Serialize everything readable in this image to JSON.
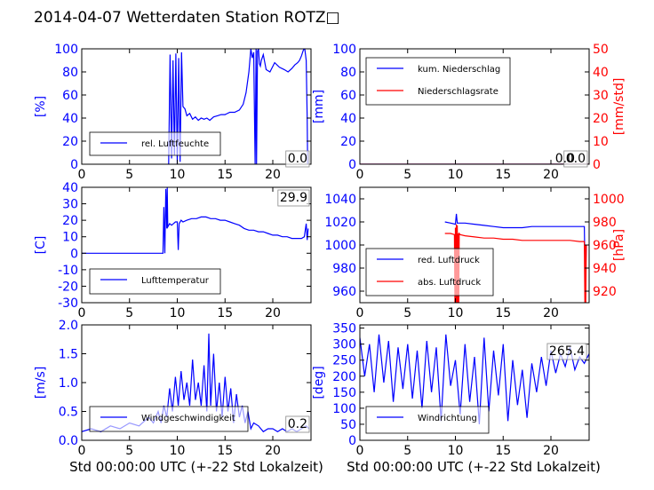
{
  "title": "2014-04-07 Wetterdaten Station ROTZ□",
  "chart_data": [
    {
      "type": "line",
      "panel": "humidity",
      "ylabel": "[%]",
      "ylim": [
        0,
        100
      ],
      "yticks": [
        0,
        20,
        40,
        60,
        80,
        100
      ],
      "xlim": [
        0,
        24
      ],
      "xticks": [
        0,
        5,
        10,
        15,
        20
      ],
      "legend": "bottom-left",
      "grid": false,
      "value_box": "0.0",
      "series": [
        {
          "name": "rel. Luftfeuchte",
          "color": "#0000ff",
          "x": [
            9.1,
            9.25,
            9.4,
            9.55,
            9.7,
            9.85,
            10.0,
            10.15,
            10.3,
            10.45,
            10.6,
            10.8,
            11.0,
            11.3,
            11.6,
            11.9,
            12.2,
            12.5,
            12.8,
            13.1,
            13.4,
            13.8,
            14.2,
            14.6,
            15.0,
            15.5,
            16.0,
            16.5,
            16.9,
            17.2,
            17.5,
            17.7,
            17.85,
            18.0,
            18.15,
            18.25,
            18.3,
            18.4,
            18.5,
            18.6,
            18.7,
            18.8,
            19.0,
            19.3,
            19.7,
            20.2,
            20.7,
            21.2,
            21.6,
            22.0,
            22.3,
            22.6,
            22.8,
            23.0,
            23.2,
            23.35,
            23.5,
            23.6,
            23.65
          ],
          "y": [
            0,
            95,
            5,
            90,
            8,
            96,
            0,
            92,
            2,
            97,
            50,
            48,
            42,
            44,
            39,
            41,
            38,
            40,
            39,
            40,
            38,
            41,
            42,
            43,
            43,
            45,
            45,
            47,
            52,
            62,
            80,
            100,
            92,
            97,
            0,
            100,
            0,
            98,
            100,
            87,
            85,
            90,
            95,
            82,
            80,
            88,
            84,
            82,
            80,
            83,
            86,
            88,
            90,
            94,
            99,
            100,
            90,
            40,
            0
          ]
        }
      ]
    },
    {
      "type": "line",
      "panel": "precipitation",
      "ylabel": "[mm]",
      "ylabel_right": "[mm/std]",
      "ylim": [
        0,
        100
      ],
      "ylim_right": [
        0,
        50
      ],
      "yticks": [
        0,
        20,
        40,
        60,
        80,
        100
      ],
      "yticks_right": [
        0,
        10,
        20,
        30,
        40,
        50
      ],
      "xlim": [
        0,
        24
      ],
      "xticks": [
        0,
        5,
        10,
        15,
        20
      ],
      "legend": "top-left",
      "grid": false,
      "value_box": "0.0",
      "value_box_2": "0.0",
      "series": [
        {
          "name": "kum. Niederschlag",
          "color": "#0000ff",
          "x": [
            0,
            24
          ],
          "y": [
            0,
            0
          ]
        },
        {
          "name": "Niederschlagsrate",
          "color": "#ff0000",
          "x": [
            0,
            24
          ],
          "y": [
            0,
            0
          ],
          "axis": "right"
        }
      ]
    },
    {
      "type": "line",
      "panel": "temperature",
      "ylabel": "[C]",
      "ylim": [
        -30,
        40
      ],
      "yticks": [
        -30,
        -20,
        -10,
        0,
        10,
        20,
        30,
        40
      ],
      "xlim": [
        0,
        24
      ],
      "xticks": [
        0,
        5,
        10,
        15,
        20
      ],
      "legend": "bottom-left",
      "grid": false,
      "value_box": "29.9",
      "series": [
        {
          "name": "Lufttemperatur",
          "color": "#0000ff",
          "x": [
            0,
            8.5,
            8.6,
            8.7,
            8.8,
            8.9,
            8.95,
            9.0,
            9.2,
            9.4,
            9.6,
            9.8,
            10.0,
            10.1,
            10.2,
            10.4,
            10.6,
            11.0,
            11.5,
            12.0,
            12.5,
            13.0,
            13.5,
            14.0,
            14.5,
            15.0,
            15.5,
            16.0,
            16.5,
            17.0,
            17.5,
            18.0,
            18.5,
            19.0,
            19.5,
            20.0,
            20.5,
            21.0,
            21.5,
            22.0,
            22.5,
            23.0,
            23.3,
            23.5,
            23.6,
            23.7
          ],
          "y": [
            0,
            0,
            28,
            0,
            39,
            15,
            40,
            16,
            18,
            17,
            18,
            19,
            19,
            2,
            18,
            20,
            19,
            20,
            21,
            21,
            22,
            22,
            21,
            21,
            20,
            20,
            19,
            18,
            17,
            15,
            14,
            14,
            13,
            13,
            12,
            11,
            11,
            10,
            10,
            9,
            9,
            9,
            10,
            18,
            8,
            15
          ]
        }
      ]
    },
    {
      "type": "line",
      "panel": "pressure",
      "ylabel_right": "[hPa]",
      "ylim": [
        950,
        1050
      ],
      "ylim_right": [
        910,
        1010
      ],
      "yticks": [
        960,
        980,
        1000,
        1020,
        1040
      ],
      "yticks_right": [
        920,
        940,
        960,
        980,
        1000
      ],
      "xlim": [
        0,
        24
      ],
      "xticks": [
        0,
        5,
        10,
        15,
        20
      ],
      "legend": "bottom-left",
      "grid": false,
      "series": [
        {
          "name": "red. Luftdruck",
          "color": "#0000ff",
          "x": [
            8.9,
            9.5,
            10.0,
            10.1,
            10.2,
            10.5,
            11.0,
            12.0,
            13.0,
            14.0,
            15.0,
            16.0,
            17.0,
            18.0,
            19.0,
            20.0,
            21.0,
            22.0,
            23.0,
            23.5,
            23.6,
            23.7
          ],
          "y": [
            1020,
            1019,
            1018,
            1027,
            1019,
            1019,
            1019,
            1018,
            1017,
            1016,
            1015,
            1015,
            1015,
            1016,
            1016,
            1016,
            1016,
            1016,
            1016,
            1016,
            960,
            1000
          ]
        },
        {
          "name": "abs. Luftdruck",
          "color": "#ff0000",
          "x": [
            8.9,
            9.5,
            9.9,
            9.95,
            10.0,
            10.05,
            10.1,
            10.15,
            10.2,
            10.25,
            10.3,
            10.35,
            10.4,
            10.5,
            11.0,
            12.0,
            13.0,
            14.0,
            15.0,
            16.0,
            17.0,
            18.0,
            19.0,
            20.0,
            21.0,
            22.0,
            23.0,
            23.5,
            23.55,
            23.6,
            23.65,
            23.7
          ],
          "y": [
            970,
            970,
            969,
            910,
            975,
            910,
            978,
            910,
            977,
            910,
            970,
            910,
            970,
            969,
            968,
            967,
            966,
            966,
            965,
            965,
            964,
            964,
            964,
            964,
            964,
            964,
            963,
            963,
            910,
            960,
            910,
            960
          ],
          "axis": "right"
        }
      ]
    },
    {
      "type": "line",
      "panel": "wind_speed",
      "ylabel": "[m/s]",
      "ylim": [
        0,
        2.0
      ],
      "yticks": [
        0.0,
        0.5,
        1.0,
        1.5,
        2.0
      ],
      "ytick_labels": [
        "0.0",
        "0.5",
        "1.0",
        "1.5",
        "2.0"
      ],
      "xlim": [
        0,
        24
      ],
      "xticks": [
        0,
        5,
        10,
        15,
        20
      ],
      "legend": "bottom-left",
      "grid": false,
      "value_box": "0.2",
      "series": [
        {
          "name": "Windgeschwindigkeit",
          "color": "#0000ff",
          "x": [
            0,
            1,
            2,
            3,
            4,
            5,
            6,
            7,
            7.5,
            8,
            8.3,
            8.6,
            8.9,
            9.2,
            9.5,
            9.8,
            10.1,
            10.4,
            10.7,
            11.0,
            11.3,
            11.6,
            11.9,
            12.2,
            12.5,
            12.8,
            13.1,
            13.3,
            13.5,
            13.8,
            14.1,
            14.4,
            14.7,
            15.0,
            15.3,
            15.6,
            15.9,
            16.2,
            16.5,
            16.8,
            17.1,
            17.4,
            17.7,
            18.0,
            18.5,
            19.0,
            19.5,
            20.0,
            20.5,
            21,
            21.5,
            22,
            22.5,
            23,
            23.5,
            23.8
          ],
          "y": [
            0.15,
            0.2,
            0.15,
            0.25,
            0.2,
            0.3,
            0.25,
            0.4,
            0.3,
            0.5,
            0.3,
            0.6,
            0.4,
            0.9,
            0.5,
            1.1,
            0.6,
            1.2,
            0.7,
            1.0,
            0.6,
            1.4,
            0.7,
            1.0,
            0.6,
            1.3,
            0.5,
            1.85,
            0.6,
            1.5,
            0.5,
            1.0,
            0.4,
            1.1,
            0.5,
            0.9,
            0.3,
            0.8,
            0.4,
            0.6,
            0.3,
            0.5,
            0.2,
            0.3,
            0.25,
            0.15,
            0.2,
            0.2,
            0.15,
            0.2,
            0.15,
            0.2,
            0.15,
            0.2,
            0.25,
            0.2
          ]
        }
      ]
    },
    {
      "type": "line",
      "panel": "wind_direction",
      "ylabel": "[deg]",
      "ylim": [
        0,
        360
      ],
      "yticks": [
        0,
        50,
        100,
        150,
        200,
        250,
        300,
        350
      ],
      "xlim": [
        0,
        24
      ],
      "xticks": [
        0,
        5,
        10,
        15,
        20
      ],
      "legend": "bottom-left",
      "grid": false,
      "value_box": "265.4",
      "series": [
        {
          "name": "Windrichtung",
          "color": "#0000ff",
          "x": [
            0,
            0.5,
            1,
            1.5,
            2,
            2.5,
            3,
            3.5,
            4,
            4.5,
            5,
            5.5,
            6,
            6.5,
            7,
            7.5,
            8,
            8.5,
            9,
            9.5,
            10,
            10.5,
            11,
            11.5,
            12,
            12.5,
            13,
            13.5,
            14,
            14.5,
            15,
            15.5,
            16,
            16.5,
            17,
            17.5,
            18,
            18.5,
            19,
            19.5,
            20,
            20.5,
            21,
            21.5,
            22,
            22.5,
            23,
            23.5,
            24
          ],
          "y": [
            320,
            200,
            300,
            150,
            330,
            180,
            310,
            120,
            290,
            160,
            300,
            130,
            280,
            100,
            310,
            150,
            290,
            60,
            330,
            170,
            250,
            80,
            300,
            120,
            260,
            50,
            320,
            90,
            280,
            140,
            300,
            60,
            250,
            110,
            220,
            70,
            240,
            150,
            260,
            170,
            280,
            210,
            270,
            230,
            290,
            220,
            260,
            240,
            270
          ]
        }
      ]
    }
  ],
  "xlabel_bottom_left": "Std 00:00:00 UTC (+-22 Std Lokalzeit)",
  "xlabel_bottom_right": "Std 00:00:00 UTC (+-22 Std Lokalzeit)",
  "colors": {
    "primary": "#0000ff",
    "secondary": "#ff0000",
    "axis": "#000000"
  }
}
